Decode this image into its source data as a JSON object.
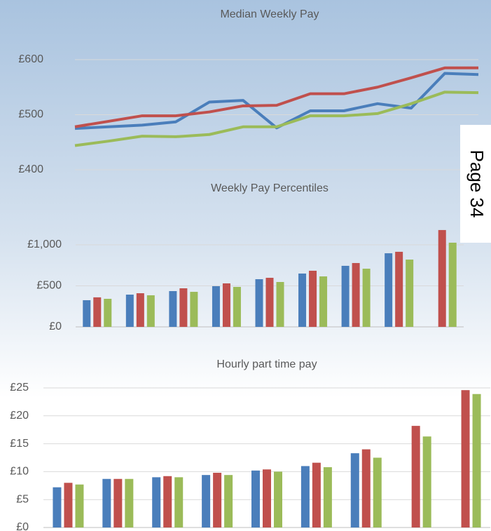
{
  "page_label": "Page 34",
  "chart_data": [
    {
      "type": "line",
      "title": "Median Weekly Pay",
      "categories": [
        null,
        null,
        null,
        null,
        null,
        null,
        null,
        null,
        null,
        null,
        null,
        null,
        null
      ],
      "series": [
        {
          "color": "#4a7ebb",
          "values": [
            475,
            478,
            481,
            487,
            523,
            526,
            476,
            507,
            507,
            520,
            512,
            575,
            573
          ]
        },
        {
          "color": "#c0504d",
          "values": [
            478,
            488,
            498,
            498,
            505,
            516,
            517,
            538,
            538,
            550,
            567,
            585,
            585
          ]
        },
        {
          "color": "#9bbb59",
          "values": [
            444,
            452,
            461,
            460,
            464,
            478,
            478,
            498,
            498,
            502,
            520,
            541,
            540
          ]
        }
      ],
      "ylim": [
        400,
        600
      ],
      "yticks": [
        {
          "value": 400,
          "label": "£400"
        },
        {
          "value": 500,
          "label": "£500"
        },
        {
          "value": 600,
          "label": "£600"
        }
      ],
      "grid": true
    },
    {
      "type": "bar",
      "title": "Weekly Pay Percentiles",
      "categories": [
        null,
        null,
        null,
        null,
        null,
        null,
        null,
        null,
        null
      ],
      "series": [
        {
          "color": "#4a7ebb",
          "values": [
            325,
            393,
            436,
            496,
            581,
            650,
            744,
            897,
            null
          ]
        },
        {
          "color": "#c0504d",
          "values": [
            360,
            410,
            470,
            530,
            598,
            684,
            778,
            915,
            1180
          ]
        },
        {
          "color": "#9bbb59",
          "values": [
            342,
            385,
            427,
            487,
            547,
            615,
            709,
            820,
            1026
          ]
        }
      ],
      "ylim": [
        0,
        1000
      ],
      "yticks": [
        {
          "value": 0,
          "label": "£0"
        },
        {
          "value": 500,
          "label": "£500"
        },
        {
          "value": 1000,
          "label": "£1,000"
        }
      ],
      "grid": true
    },
    {
      "type": "bar",
      "title": "Hourly part time pay",
      "categories": [
        null,
        null,
        null,
        null,
        null,
        null,
        null,
        null,
        null
      ],
      "series": [
        {
          "color": "#4a7ebb",
          "values": [
            7.2,
            8.7,
            9.0,
            9.4,
            10.2,
            11.0,
            13.3,
            null,
            null
          ]
        },
        {
          "color": "#c0504d",
          "values": [
            8.0,
            8.7,
            9.2,
            9.8,
            10.4,
            11.6,
            14.0,
            18.2,
            24.6
          ]
        },
        {
          "color": "#9bbb59",
          "values": [
            7.7,
            8.7,
            9.0,
            9.4,
            10.0,
            10.8,
            12.5,
            16.3,
            23.9
          ]
        }
      ],
      "ylim": [
        0,
        25
      ],
      "yticks": [
        {
          "value": 0,
          "label": "£0"
        },
        {
          "value": 5,
          "label": "£5"
        },
        {
          "value": 10,
          "label": "£10"
        },
        {
          "value": 15,
          "label": "£15"
        },
        {
          "value": 20,
          "label": "£20"
        },
        {
          "value": 25,
          "label": "£25"
        }
      ],
      "grid": true
    }
  ]
}
